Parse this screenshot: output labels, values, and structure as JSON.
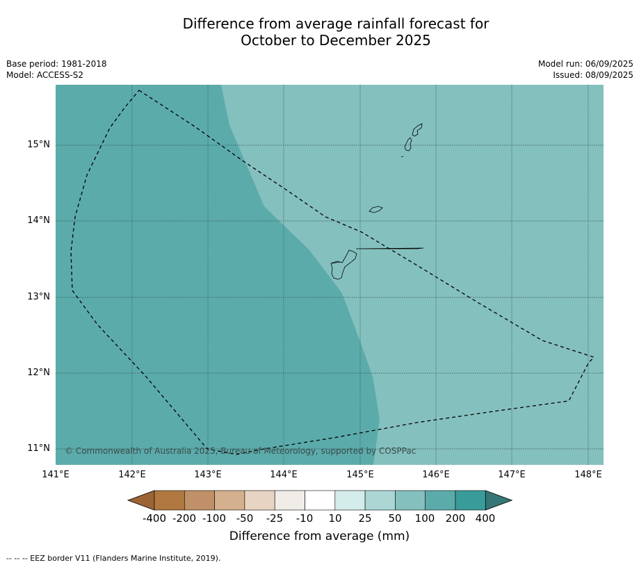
{
  "title_line1": "Difference from average rainfall forecast for",
  "title_line2": "October to December 2025",
  "base_period": "Base period: 1981-2018",
  "model": "Model: ACCESS-S2",
  "model_run": "Model run: 06/09/2025",
  "issued": "Issued: 08/09/2025",
  "copyright": "© Commonwealth of Australia 2025, Bureau of Meteorology, supported by COSPPac",
  "lat_labels": [
    "15°N",
    "14°N",
    "13°N",
    "12°N",
    "11°N"
  ],
  "lon_labels": [
    "141°E",
    "142°E",
    "143°E",
    "144°E",
    "145°E",
    "146°E",
    "147°E",
    "148°E"
  ],
  "colorbar": {
    "title": "Difference from average (mm)",
    "tick_labels": [
      "-400",
      "-200",
      "-100",
      "-50",
      "-25",
      "-10",
      "10",
      "25",
      "50",
      "100",
      "200",
      "400"
    ],
    "colors": [
      "#9c6434",
      "#b07840",
      "#c09068",
      "#d4b08e",
      "#e8d4c2",
      "#f0ece8",
      "#ffffff",
      "#d4ecea",
      "#abd6d4",
      "#84c0be",
      "#5cabab",
      "#3a9c9a",
      "#357676"
    ]
  },
  "map_colors": {
    "band_100_200": "#5cabab",
    "band_50_100": "#84c0be"
  },
  "footer": "--  --  -- EEZ border V11 (Flanders Marine Institute, 2019)."
}
